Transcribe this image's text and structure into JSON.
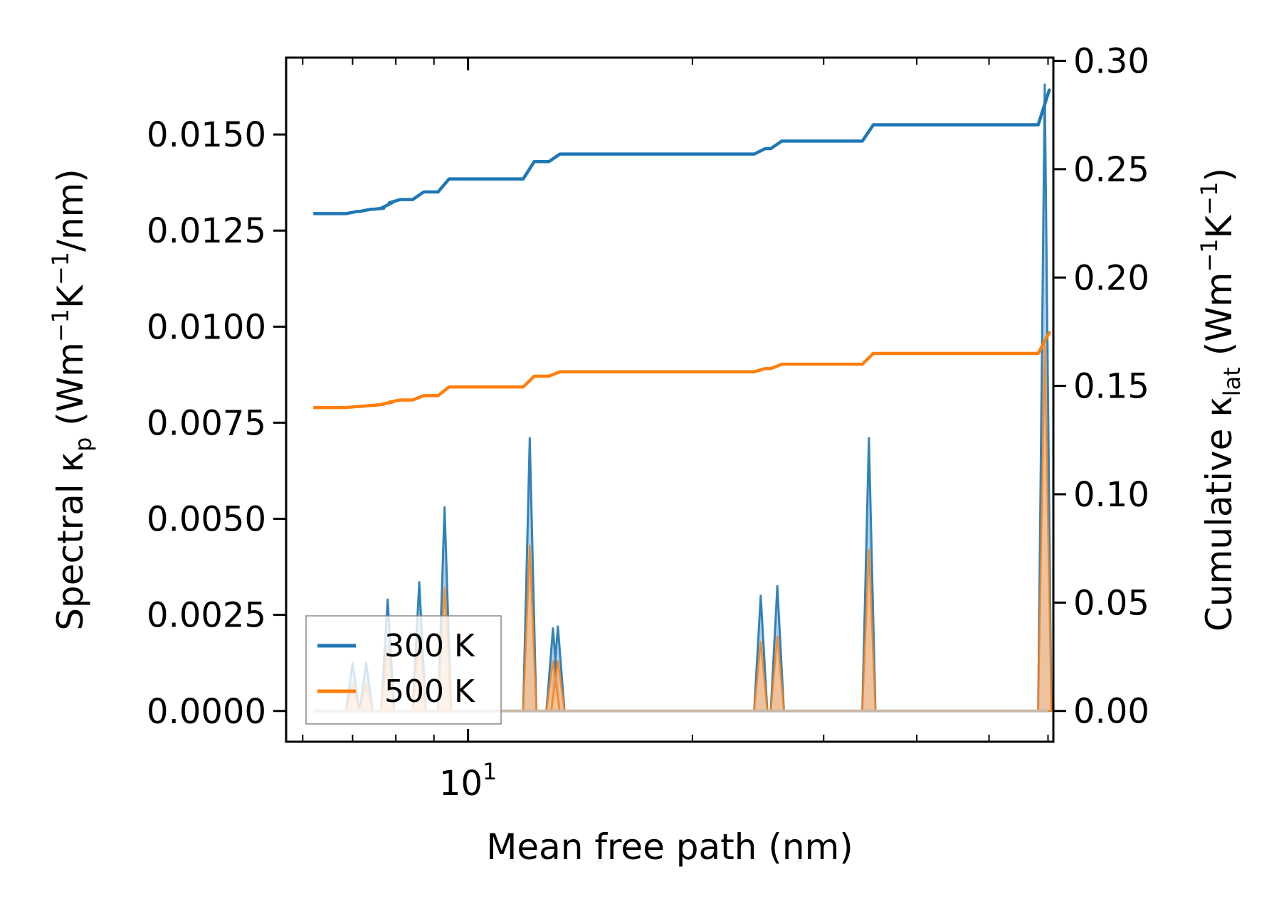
{
  "chart_data": {
    "type": "line",
    "xscale": "log",
    "xlabel": "Mean free path (nm)",
    "xlim": [
      5.7,
      61
    ],
    "x_tick_labels": [
      {
        "value": 10,
        "base": "10",
        "exp": "1"
      }
    ],
    "y_left": {
      "label_prefix": "Spectral κ",
      "label_sub": "p",
      "label_unit": " (Wm",
      "label_exp1": "−1",
      "label_mid": "K",
      "label_exp2": "−1",
      "label_tail": "/nm)",
      "ylim": [
        -0.0008,
        0.017
      ],
      "ticks": [
        0.0,
        0.0025,
        0.005,
        0.0075,
        0.01,
        0.0125,
        0.015
      ],
      "tick_labels": [
        "0.0000",
        "0.0025",
        "0.0050",
        "0.0075",
        "0.0100",
        "0.0125",
        "0.0150"
      ]
    },
    "y_right": {
      "label_prefix": "Cumulative κ",
      "label_sub": "lat",
      "label_unit": " (Wm",
      "label_exp1": "−1",
      "label_mid": "K",
      "label_exp2": "−1",
      "label_tail": ")",
      "ylim": [
        -0.0142,
        0.3015
      ],
      "ticks": [
        0.0,
        0.05,
        0.1,
        0.15,
        0.2,
        0.25,
        0.3
      ],
      "tick_labels": [
        "0.00",
        "0.05",
        "0.10",
        "0.15",
        "0.20",
        "0.25",
        "0.30"
      ]
    },
    "x_start": 6.2,
    "x_end": 60.0,
    "peak_halfwidth_log10": 0.004,
    "peaks": [
      {
        "x": 7.0,
        "k300": 0.00125,
        "k500": 0.0007
      },
      {
        "x": 7.3,
        "k300": 0.00125,
        "k500": 0.0007
      },
      {
        "x": 7.8,
        "k300": 0.0029,
        "k500": 0.0017
      },
      {
        "x": 8.6,
        "k300": 0.00335,
        "k500": 0.002
      },
      {
        "x": 9.3,
        "k300": 0.0053,
        "k500": 0.0032
      },
      {
        "x": 12.1,
        "k300": 0.0071,
        "k500": 0.0043
      },
      {
        "x": 13.0,
        "k300": 0.00215,
        "k500": 0.0013
      },
      {
        "x": 13.2,
        "k300": 0.0022,
        "k500": 0.0013
      },
      {
        "x": 24.7,
        "k300": 0.003,
        "k500": 0.0018
      },
      {
        "x": 26.0,
        "k300": 0.00325,
        "k500": 0.00195
      },
      {
        "x": 34.5,
        "k300": 0.0071,
        "k500": 0.0042
      },
      {
        "x": 59.4,
        "k300": 0.0163,
        "k500": 0.0095
      }
    ],
    "cumulative": [
      {
        "name": "300 K",
        "color": "#1f77b4",
        "fill": "#a6c8e3",
        "start": 0.2295,
        "steps": [
          [
            7.0,
            0.2305
          ],
          [
            7.3,
            0.2315
          ],
          [
            7.6,
            0.232
          ],
          [
            7.8,
            0.2345
          ],
          [
            8.0,
            0.236
          ],
          [
            8.6,
            0.2395
          ],
          [
            9.3,
            0.2455
          ],
          [
            12.1,
            0.2535
          ],
          [
            13.1,
            0.257
          ],
          [
            24.7,
            0.2595
          ],
          [
            26.0,
            0.263
          ],
          [
            34.5,
            0.2705
          ],
          [
            59.4,
            0.2865
          ]
        ]
      },
      {
        "name": "500 K",
        "color": "#ff7f0e",
        "fill": "#fbbe8c",
        "start": 0.14,
        "steps": [
          [
            7.0,
            0.1405
          ],
          [
            7.3,
            0.141
          ],
          [
            7.6,
            0.1415
          ],
          [
            7.8,
            0.1425
          ],
          [
            8.0,
            0.1435
          ],
          [
            8.6,
            0.1455
          ],
          [
            9.3,
            0.1495
          ],
          [
            12.1,
            0.1545
          ],
          [
            13.1,
            0.1565
          ],
          [
            24.7,
            0.158
          ],
          [
            26.0,
            0.16
          ],
          [
            34.5,
            0.165
          ],
          [
            59.4,
            0.1745
          ]
        ]
      }
    ],
    "legend": {
      "position": "lower-left",
      "entries": [
        "300 K",
        "500 K"
      ]
    }
  }
}
